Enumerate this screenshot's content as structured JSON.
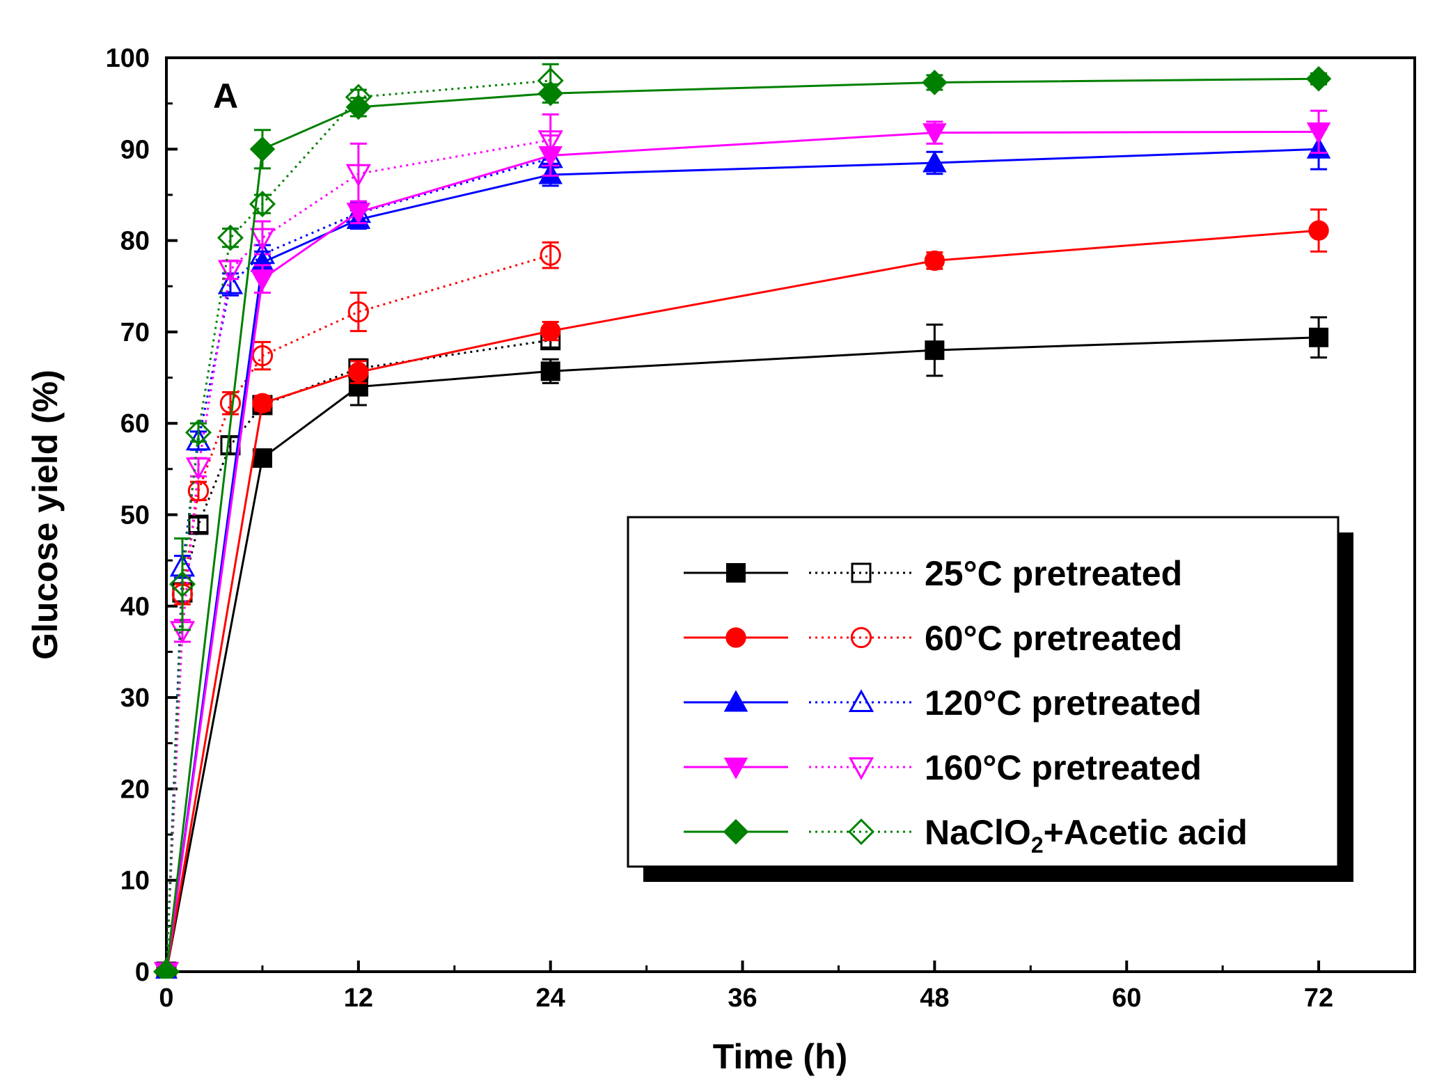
{
  "chart_data": {
    "type": "line",
    "panel_label": "A",
    "xlabel": "Time (h)",
    "ylabel": "Glucose yield (%)",
    "xlim": [
      0,
      78
    ],
    "ylim": [
      0,
      100
    ],
    "xticks": [
      0,
      12,
      24,
      36,
      48,
      60,
      72
    ],
    "yticks": [
      0,
      10,
      20,
      30,
      40,
      50,
      60,
      70,
      80,
      90,
      100
    ],
    "legend": {
      "position": "lower-right",
      "entries": [
        {
          "label": "25°C pretreated",
          "series": [
            "25C-solid",
            "25C-open"
          ]
        },
        {
          "label": "60°C pretreated",
          "series": [
            "60C-solid",
            "60C-open"
          ]
        },
        {
          "label": "120°C pretreated",
          "series": [
            "120C-solid",
            "120C-open"
          ]
        },
        {
          "label": "160°C pretreated",
          "series": [
            "160C-solid",
            "160C-open"
          ]
        },
        {
          "label_main": "NaClO",
          "label_sub": "2",
          "label_rest": "+Acetic acid",
          "series": [
            "NaClO2-solid",
            "NaClO2-open"
          ]
        }
      ]
    },
    "series": [
      {
        "id": "25C-solid",
        "color": "#000000",
        "marker": "square",
        "filled": true,
        "line": "solid",
        "x": [
          0,
          6,
          12,
          24,
          48,
          72
        ],
        "y": [
          0,
          56.2,
          64.0,
          65.7,
          68.0,
          69.4
        ],
        "err": [
          0,
          0.8,
          2.0,
          1.3,
          2.8,
          2.2
        ]
      },
      {
        "id": "25C-open",
        "color": "#000000",
        "marker": "square",
        "filled": false,
        "line": "dotted",
        "x": [
          0,
          1,
          2,
          4,
          6,
          12,
          24
        ],
        "y": [
          0,
          41.5,
          48.9,
          57.6,
          62.0,
          66.0,
          69.1
        ],
        "err": [
          0,
          1.0,
          0.8,
          0.9,
          0.8,
          1.0,
          0.8
        ]
      },
      {
        "id": "60C-solid",
        "color": "#ff0000",
        "marker": "circle",
        "filled": true,
        "line": "solid",
        "x": [
          0,
          6,
          12,
          24,
          48,
          72
        ],
        "y": [
          0,
          62.2,
          65.6,
          70.1,
          77.8,
          81.1
        ],
        "err": [
          0,
          0.8,
          1.2,
          1.0,
          0.9,
          2.3
        ]
      },
      {
        "id": "60C-open",
        "color": "#ff0000",
        "marker": "circle",
        "filled": false,
        "line": "dotted",
        "x": [
          0,
          1,
          2,
          4,
          6,
          12,
          24
        ],
        "y": [
          0,
          41.3,
          52.6,
          62.2,
          67.4,
          72.2,
          78.4
        ],
        "err": [
          0,
          1.1,
          1.0,
          1.2,
          1.5,
          2.1,
          1.4
        ]
      },
      {
        "id": "120C-solid",
        "color": "#0000ff",
        "marker": "triangle-up",
        "filled": true,
        "line": "solid",
        "x": [
          0,
          6,
          12,
          24,
          48,
          72
        ],
        "y": [
          0,
          77.6,
          82.3,
          87.2,
          88.5,
          90.0
        ],
        "err": [
          0,
          1.2,
          1.0,
          1.2,
          1.2,
          2.2
        ]
      },
      {
        "id": "120C-open",
        "color": "#0000ff",
        "marker": "triangle-up",
        "filled": false,
        "line": "dotted",
        "x": [
          0,
          1,
          2,
          4,
          6,
          12,
          24
        ],
        "y": [
          0,
          44.3,
          58.1,
          75.2,
          78.5,
          83.0,
          89.0
        ],
        "err": [
          0,
          1.2,
          1.0,
          1.2,
          1.0,
          1.2,
          1.0
        ]
      },
      {
        "id": "160C-solid",
        "color": "#ff00ff",
        "marker": "triangle-down",
        "filled": true,
        "line": "solid",
        "x": [
          0,
          6,
          12,
          24,
          48,
          72
        ],
        "y": [
          0,
          75.8,
          83.1,
          89.3,
          91.8,
          91.9
        ],
        "err": [
          0,
          1.5,
          1.2,
          2.2,
          1.2,
          2.3
        ]
      },
      {
        "id": "160C-open",
        "color": "#ff00ff",
        "marker": "triangle-down",
        "filled": false,
        "line": "dotted",
        "x": [
          0,
          1,
          2,
          4,
          6,
          12,
          24
        ],
        "y": [
          0,
          37.3,
          55.2,
          76.8,
          80.3,
          87.3,
          91.0
        ],
        "err": [
          0,
          1.2,
          1.0,
          1.0,
          1.8,
          3.3,
          2.8
        ]
      },
      {
        "id": "NaClO2-solid",
        "color": "#008000",
        "marker": "diamond",
        "filled": true,
        "line": "solid",
        "x": [
          0,
          6,
          12,
          24,
          48,
          72
        ],
        "y": [
          0,
          90.0,
          94.6,
          96.1,
          97.3,
          97.7
        ],
        "err": [
          0,
          2.1,
          1.0,
          1.0,
          0.8,
          0.6
        ]
      },
      {
        "id": "NaClO2-open",
        "color": "#008000",
        "marker": "diamond",
        "filled": false,
        "line": "dotted",
        "x": [
          0,
          1,
          2,
          4,
          6,
          12,
          24
        ],
        "y": [
          0,
          42.4,
          59.0,
          80.3,
          84.0,
          95.7,
          97.5
        ],
        "err": [
          0,
          5.0,
          1.0,
          1.0,
          1.0,
          0.8,
          1.8
        ]
      }
    ]
  }
}
